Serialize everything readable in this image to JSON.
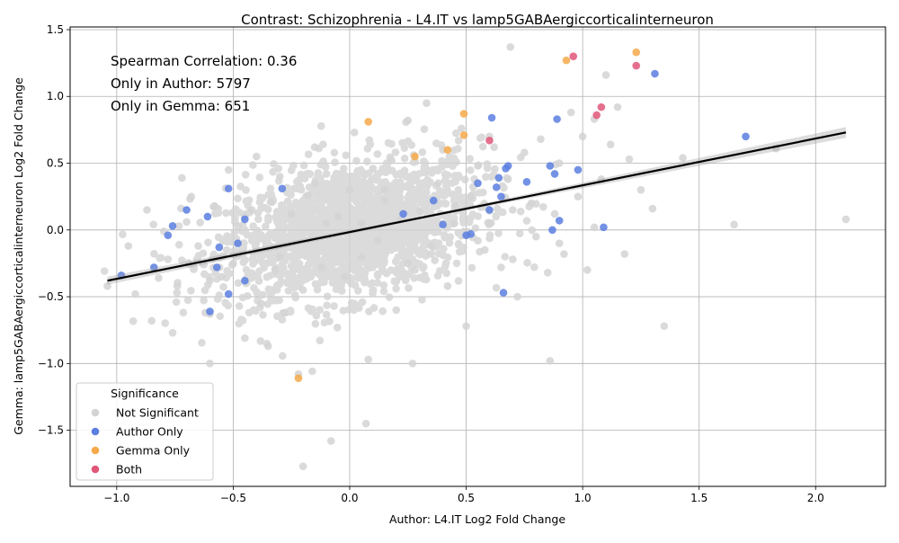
{
  "chart_data": {
    "type": "scatter",
    "title": "Contrast: Schizophrenia - L4.IT vs lamp5GABAergiccorticalinterneuron",
    "xlabel": "Author: L4.IT Log2 Fold Change",
    "ylabel": "Gemma: lamp5GABAergiccorticalinterneuron Log2 Fold Change",
    "xlim": [
      -1.2,
      2.3
    ],
    "ylim": [
      -1.92,
      1.52
    ],
    "xticks": [
      -1.0,
      -0.5,
      0.0,
      0.5,
      1.0,
      1.5,
      2.0
    ],
    "xtick_labels": [
      "−1.0",
      "−0.5",
      "0.0",
      "0.5",
      "1.0",
      "1.5",
      "2.0"
    ],
    "yticks": [
      -1.5,
      -1.0,
      -0.5,
      0.0,
      0.5,
      1.0,
      1.5
    ],
    "ytick_labels": [
      "−1.5",
      "−1.0",
      "−0.5",
      "0.0",
      "0.5",
      "1.0",
      "1.5"
    ],
    "grid": true,
    "legend_position": "bottom-left",
    "legend_title": "Significance",
    "annotations": [
      "Spearman Correlation: 0.36",
      "Only in Author: 5797",
      "Only in Gemma: 651"
    ],
    "regression": {
      "x": [
        -1.04,
        2.13
      ],
      "y": [
        -0.38,
        0.73
      ],
      "color": "#000000"
    },
    "series": [
      {
        "name": "Not Significant",
        "color": "#d3d3d3",
        "x": [
          -1.04,
          -0.95,
          -0.92,
          -0.87,
          -0.85,
          -0.82,
          -0.78,
          -0.76,
          -0.74,
          -0.72,
          -0.7,
          -0.68,
          -0.65,
          -0.62,
          -0.6,
          -0.58,
          -0.55,
          -0.52,
          -0.5,
          -0.48,
          -0.45,
          -0.42,
          -0.4,
          -0.38,
          -0.35,
          -0.34,
          -0.32,
          -0.3,
          -0.28,
          -0.25,
          -0.22,
          -0.2,
          -0.18,
          -0.15,
          -0.12,
          -0.1,
          -0.08,
          -0.05,
          -0.02,
          0.0,
          0.02,
          0.05,
          0.07,
          0.1,
          0.12,
          0.15,
          0.18,
          0.2,
          0.22,
          0.25,
          0.28,
          0.3,
          0.33,
          0.35,
          0.38,
          0.4,
          0.42,
          0.45,
          0.48,
          0.5,
          0.52,
          0.55,
          0.58,
          0.6,
          0.62,
          0.65,
          0.68,
          0.7,
          0.72,
          0.75,
          0.78,
          0.8,
          0.82,
          0.85,
          0.88,
          0.9,
          0.92,
          0.95,
          0.98,
          1.0,
          1.02,
          1.05,
          1.08,
          1.1,
          1.12,
          1.15,
          1.18,
          1.2,
          1.25,
          1.3,
          1.35,
          1.43,
          1.65,
          1.83,
          2.13,
          -0.2,
          0.08,
          0.27,
          0.69,
          -0.1,
          -0.3,
          0.45,
          0.55,
          -0.45,
          0.15,
          0.35,
          0.05,
          -0.6,
          0.7,
          1.05,
          0.86,
          -0.15,
          0.25,
          0.6,
          0.9
        ],
        "y": [
          -0.42,
          -0.12,
          -0.48,
          0.15,
          -0.68,
          -0.36,
          -0.22,
          -0.77,
          -0.42,
          0.39,
          0.06,
          0.25,
          -0.12,
          -0.62,
          -1.0,
          0.18,
          -0.35,
          0.45,
          -0.25,
          0.03,
          -0.81,
          0.15,
          0.55,
          -0.55,
          -0.87,
          0.21,
          -0.3,
          0.4,
          -0.62,
          0.12,
          -1.08,
          -0.45,
          0.26,
          0.62,
          -0.28,
          0.05,
          -1.58,
          0.1,
          -0.35,
          0.3,
          0.73,
          -0.2,
          -1.45,
          0.46,
          -0.08,
          0.22,
          0.52,
          -0.6,
          0.08,
          0.82,
          -0.3,
          0.14,
          0.95,
          -0.18,
          0.35,
          0.6,
          -0.42,
          0.05,
          0.76,
          -0.72,
          0.25,
          0.48,
          -0.15,
          0.05,
          0.62,
          -0.28,
          0.38,
          0.15,
          -0.5,
          0.58,
          0.2,
          -0.05,
          0.68,
          -0.32,
          0.12,
          0.5,
          -0.18,
          0.88,
          0.25,
          0.7,
          -0.3,
          0.02,
          0.38,
          1.16,
          0.64,
          0.92,
          -0.18,
          0.53,
          0.3,
          0.16,
          -0.72,
          0.54,
          0.04,
          0.61,
          0.08,
          -1.77,
          -0.97,
          -1.0,
          1.37,
          0.42,
          -0.2,
          0.18,
          -0.08,
          0.1,
          0.3,
          -0.12,
          0.05,
          -0.38,
          -0.22,
          0.83,
          -0.98,
          0.35,
          -0.25,
          0.7,
          -0.1
        ]
      },
      {
        "name": "Author Only",
        "color": "#5b7fe0",
        "x": [
          -0.98,
          -0.84,
          -0.78,
          -0.76,
          -0.7,
          -0.61,
          -0.6,
          -0.57,
          -0.56,
          -0.52,
          -0.52,
          -0.48,
          -0.45,
          -0.45,
          -0.29,
          0.23,
          0.36,
          0.4,
          0.5,
          0.52,
          0.55,
          0.6,
          0.61,
          0.63,
          0.64,
          0.65,
          0.66,
          0.67,
          0.68,
          0.76,
          0.86,
          0.87,
          0.88,
          0.89,
          0.9,
          0.98,
          1.09,
          1.31,
          1.7
        ],
        "y": [
          -0.34,
          -0.28,
          -0.04,
          0.03,
          0.15,
          0.1,
          -0.61,
          -0.28,
          -0.13,
          0.31,
          -0.48,
          -0.1,
          -0.38,
          0.08,
          0.31,
          0.12,
          0.22,
          0.04,
          -0.04,
          -0.03,
          0.35,
          0.15,
          0.84,
          0.32,
          0.39,
          0.25,
          -0.47,
          0.46,
          0.48,
          0.36,
          0.48,
          0.0,
          0.42,
          0.83,
          0.07,
          0.45,
          0.02,
          1.17,
          0.7
        ]
      },
      {
        "name": "Gemma Only",
        "color": "#f5a94a",
        "x": [
          -0.22,
          0.08,
          0.28,
          0.42,
          0.49,
          0.49,
          0.93,
          1.23
        ],
        "y": [
          -1.11,
          0.81,
          0.55,
          0.6,
          0.71,
          0.87,
          1.27,
          1.33
        ]
      },
      {
        "name": "Both",
        "color": "#e0577a",
        "x": [
          0.6,
          0.96,
          1.06,
          1.08,
          1.23
        ],
        "y": [
          0.67,
          1.3,
          0.86,
          0.92,
          1.23
        ]
      }
    ]
  }
}
